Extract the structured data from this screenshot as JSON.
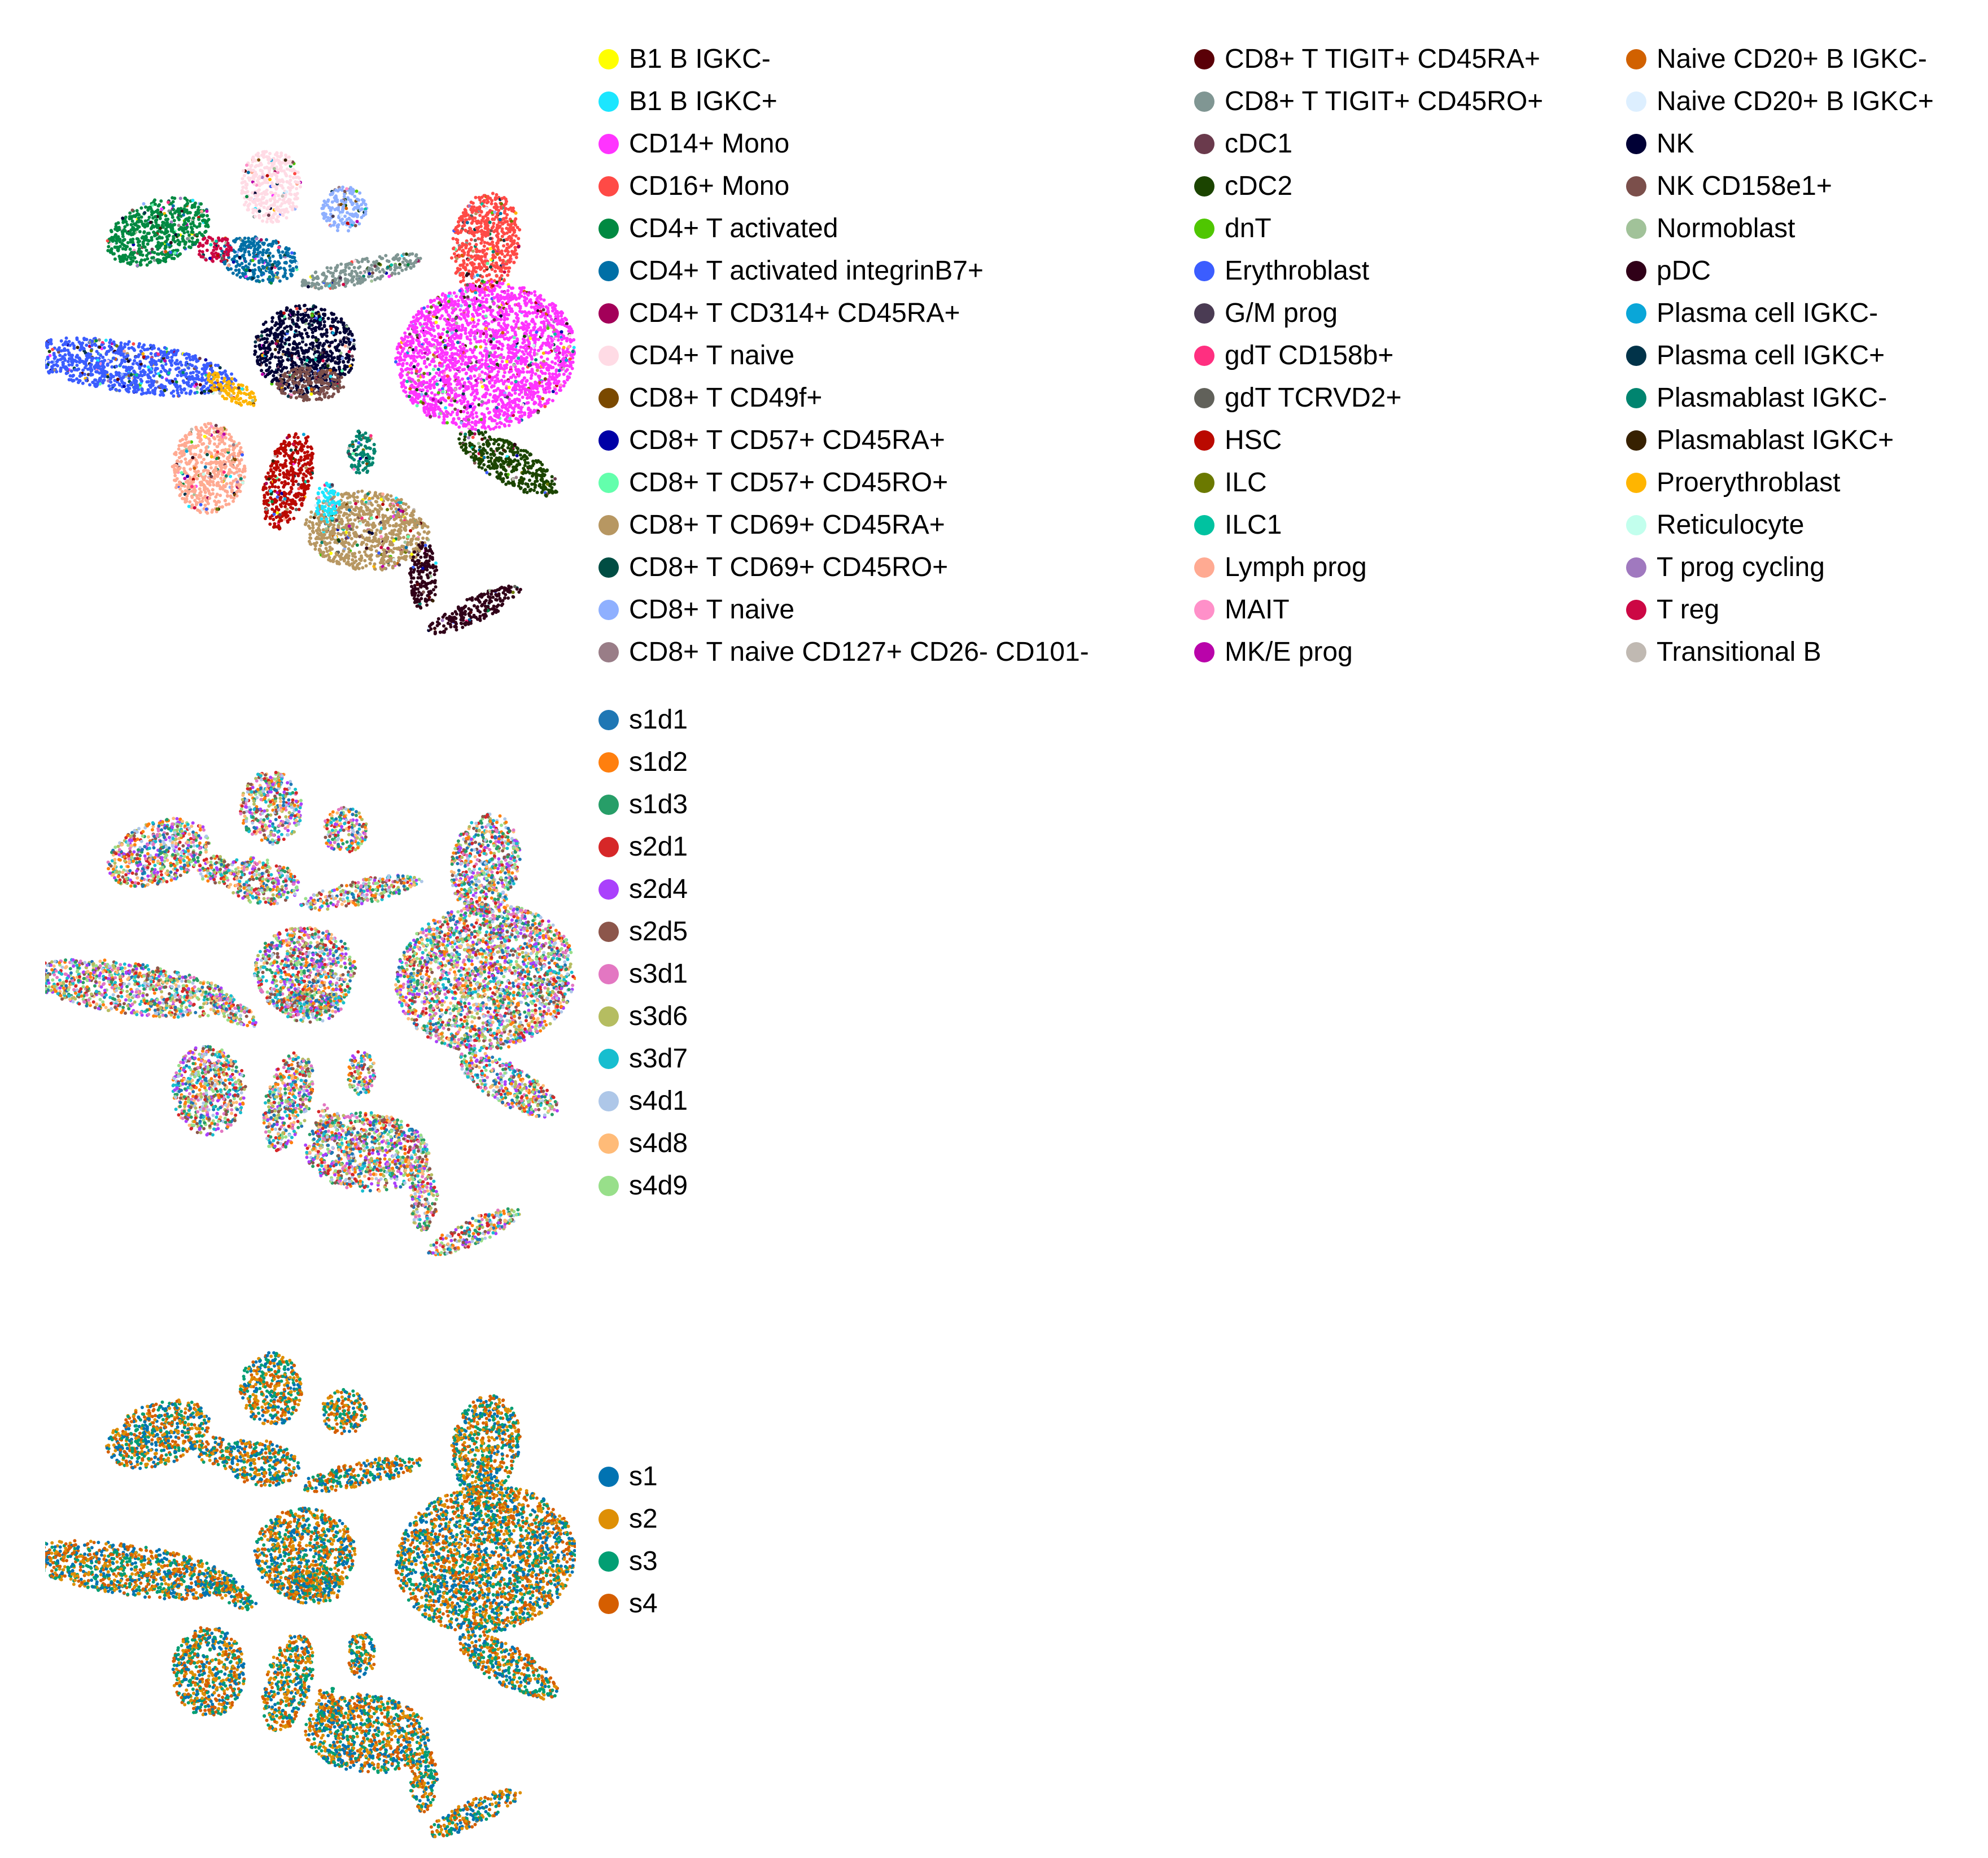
{
  "chart_data": [
    {
      "type": "scatter",
      "title": "",
      "xlabel": "",
      "ylabel": "",
      "grid": false,
      "legend_placement": "right",
      "legend_columns": 3,
      "series": [
        {
          "name": "B1 B IGKC-",
          "color": "#ffff00"
        },
        {
          "name": "B1 B IGKC+",
          "color": "#1ce6ff"
        },
        {
          "name": "CD14+ Mono",
          "color": "#ff34ff"
        },
        {
          "name": "CD16+ Mono",
          "color": "#ff4a46"
        },
        {
          "name": "CD4+ T activated",
          "color": "#008941"
        },
        {
          "name": "CD4+ T activated integrinB7+",
          "color": "#006fa6"
        },
        {
          "name": "CD4+ T CD314+ CD45RA+",
          "color": "#a30059"
        },
        {
          "name": "CD4+ T naive",
          "color": "#ffdbe5"
        },
        {
          "name": "CD8+ T CD49f+",
          "color": "#7a4900"
        },
        {
          "name": "CD8+ T CD57+ CD45RA+",
          "color": "#0000a6"
        },
        {
          "name": "CD8+ T CD57+ CD45RO+",
          "color": "#63ffac"
        },
        {
          "name": "CD8+ T CD69+ CD45RA+",
          "color": "#b79762"
        },
        {
          "name": "CD8+ T CD69+ CD45RO+",
          "color": "#004d43"
        },
        {
          "name": "CD8+ T naive",
          "color": "#8fb0ff"
        },
        {
          "name": "CD8+ T naive CD127+ CD26- CD101-",
          "color": "#997d87"
        },
        {
          "name": "CD8+ T TIGIT+ CD45RA+",
          "color": "#5a0007"
        },
        {
          "name": "CD8+ T TIGIT+ CD45RO+",
          "color": "#809693"
        },
        {
          "name": "cDC1",
          "color": "#6a3a4c"
        },
        {
          "name": "cDC2",
          "color": "#1b4400"
        },
        {
          "name": "dnT",
          "color": "#4fc601"
        },
        {
          "name": "Erythroblast",
          "color": "#3b5dff"
        },
        {
          "name": "G/M prog",
          "color": "#4a3b53"
        },
        {
          "name": "gdT CD158b+",
          "color": "#ff2f80"
        },
        {
          "name": "gdT TCRVD2+",
          "color": "#61615a"
        },
        {
          "name": "HSC",
          "color": "#ba0900"
        },
        {
          "name": "ILC",
          "color": "#6b7900"
        },
        {
          "name": "ILC1",
          "color": "#00c2a0"
        },
        {
          "name": "Lymph prog",
          "color": "#ffaa92"
        },
        {
          "name": "MAIT",
          "color": "#ff90c9"
        },
        {
          "name": "MK/E prog",
          "color": "#b903aa"
        },
        {
          "name": "Naive CD20+ B IGKC-",
          "color": "#d16100"
        },
        {
          "name": "Naive CD20+ B IGKC+",
          "color": "#ddefff"
        },
        {
          "name": "NK",
          "color": "#000035"
        },
        {
          "name": "NK CD158e1+",
          "color": "#7b4f4b"
        },
        {
          "name": "Normoblast",
          "color": "#a1c299"
        },
        {
          "name": "pDC",
          "color": "#300018"
        },
        {
          "name": "Plasma cell IGKC-",
          "color": "#0aa6d8"
        },
        {
          "name": "Plasma cell IGKC+",
          "color": "#013349"
        },
        {
          "name": "Plasmablast IGKC-",
          "color": "#00846f"
        },
        {
          "name": "Plasmablast IGKC+",
          "color": "#372101"
        },
        {
          "name": "Proerythroblast",
          "color": "#ffb500"
        },
        {
          "name": "Reticulocyte",
          "color": "#c2ffed"
        },
        {
          "name": "T prog cycling",
          "color": "#a079bf"
        },
        {
          "name": "T reg",
          "color": "#cc0744"
        },
        {
          "name": "Transitional B",
          "color": "#c0b9b2"
        }
      ]
    },
    {
      "type": "scatter",
      "title": "",
      "xlabel": "",
      "ylabel": "",
      "grid": false,
      "legend_placement": "right",
      "legend_columns": 1,
      "series": [
        {
          "name": "s1d1",
          "color": "#1f77b4"
        },
        {
          "name": "s1d2",
          "color": "#ff7f0e"
        },
        {
          "name": "s1d3",
          "color": "#279e68"
        },
        {
          "name": "s2d1",
          "color": "#d62728"
        },
        {
          "name": "s2d4",
          "color": "#aa40fc"
        },
        {
          "name": "s2d5",
          "color": "#8c564b"
        },
        {
          "name": "s3d1",
          "color": "#e377c2"
        },
        {
          "name": "s3d6",
          "color": "#b5bd61"
        },
        {
          "name": "s3d7",
          "color": "#17becf"
        },
        {
          "name": "s4d1",
          "color": "#aec7e8"
        },
        {
          "name": "s4d8",
          "color": "#ffbb78"
        },
        {
          "name": "s4d9",
          "color": "#98df8a"
        }
      ]
    },
    {
      "type": "scatter",
      "title": "",
      "xlabel": "",
      "ylabel": "",
      "grid": false,
      "legend_placement": "right",
      "legend_columns": 1,
      "series": [
        {
          "name": "s1",
          "color": "#0173b2"
        },
        {
          "name": "s2",
          "color": "#de8f05"
        },
        {
          "name": "s3",
          "color": "#029e73"
        },
        {
          "name": "s4",
          "color": "#d55e00"
        }
      ]
    }
  ]
}
